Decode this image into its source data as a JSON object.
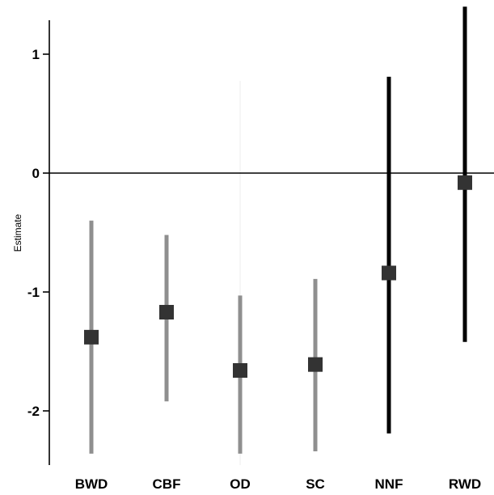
{
  "chart_data": {
    "type": "scatter",
    "ylabel": "Estimate",
    "xlabel": "",
    "title": "",
    "ylim": [
      -2.4,
      1.3
    ],
    "yticks": [
      1,
      0,
      -1,
      -2
    ],
    "ytick_labels": [
      "1",
      "0",
      "-1",
      "-2"
    ],
    "categories": [
      "BWD",
      "CBF",
      "OD",
      "SC",
      "NNF",
      "RWD"
    ],
    "estimates": [
      -1.38,
      -1.17,
      -1.66,
      -1.61,
      -0.84,
      -0.08
    ],
    "lower": [
      -2.36,
      -1.92,
      -2.36,
      -2.34,
      -2.19,
      -1.42
    ],
    "upper": [
      -0.4,
      -0.52,
      -1.03,
      -0.89,
      0.81,
      1.4
    ],
    "bar_colors": [
      "#8f8f8f",
      "#8f8f8f",
      "#8f8f8f",
      "#8f8f8f",
      "#000000",
      "#000000"
    ],
    "marker_color": "#333333",
    "faint_guideline_category": "OD",
    "reference_line_y": 0,
    "grid": false
  }
}
